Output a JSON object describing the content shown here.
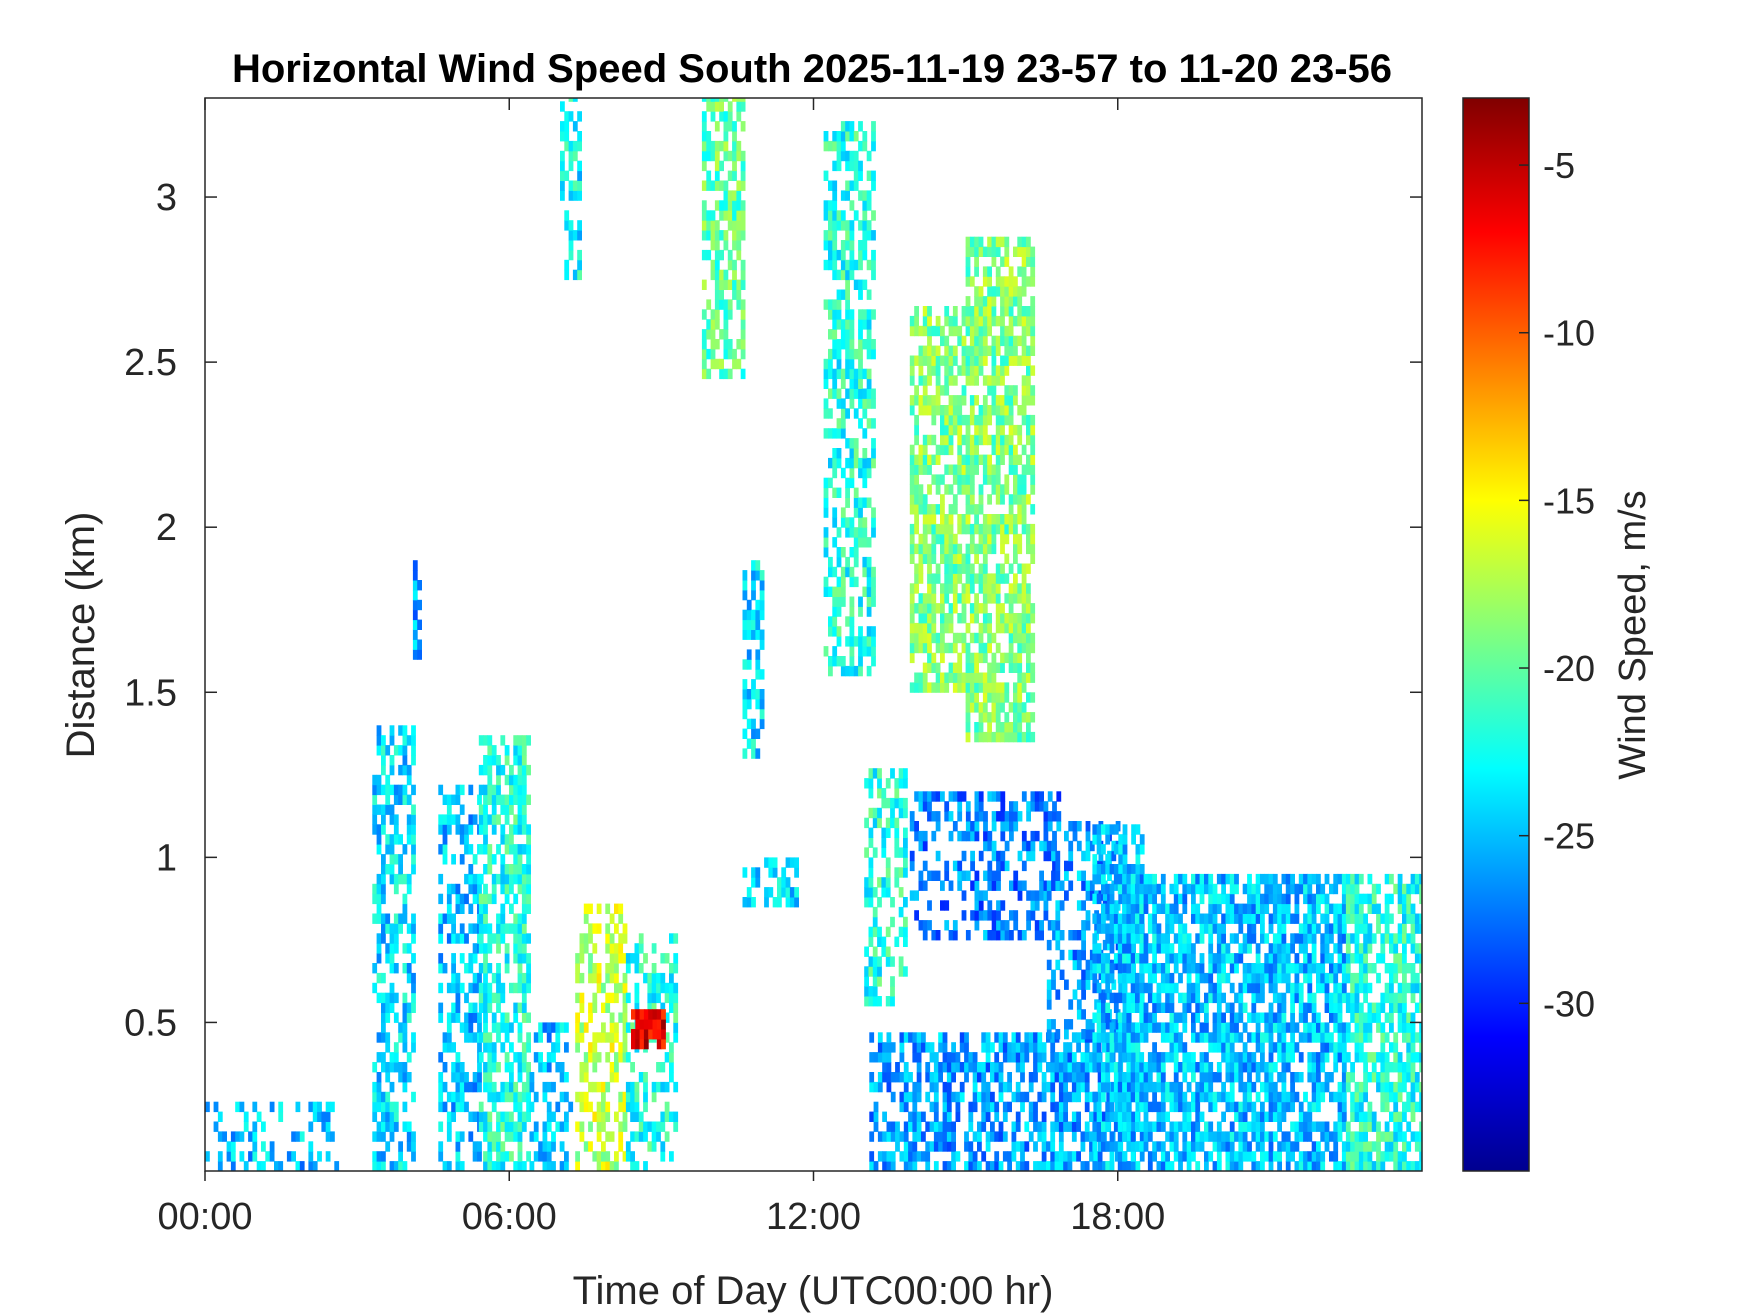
{
  "chart_data": {
    "type": "heatmap",
    "title": "Horizontal Wind Speed South 2025-11-19 23-57 to 11-20 23-56",
    "xlabel": "Time of Day (UTC00:00 hr)",
    "ylabel": "Distance (km)",
    "colorbar_label": "Wind Speed, m/s",
    "x_unit": "hours",
    "xlim": [
      0,
      24
    ],
    "ylim": [
      0.05,
      3.3
    ],
    "clim": [
      -35,
      -3
    ],
    "x_ticks": [
      0,
      6,
      12,
      18
    ],
    "x_tick_labels": [
      "00:00",
      "06:00",
      "12:00",
      "18:00"
    ],
    "y_ticks": [
      0.5,
      1,
      1.5,
      2,
      2.5,
      3
    ],
    "y_tick_labels": [
      "0.5",
      "1",
      "1.5",
      "2",
      "2.5",
      "3"
    ],
    "colorbar_ticks": [
      -30,
      -25,
      -20,
      -15,
      -10,
      -5
    ],
    "colorbar_tick_labels": [
      "-30",
      "-25",
      "-20",
      "-15",
      "-10",
      "-5"
    ],
    "colormap": "jet",
    "grid": false,
    "clusters": [
      {
        "t": [
          0.0,
          2.6
        ],
        "d": [
          0.05,
          0.25
        ],
        "v": -25,
        "density": 0.35
      },
      {
        "t": [
          3.3,
          4.1
        ],
        "d": [
          0.05,
          1.4
        ],
        "v": -24,
        "density": 0.55
      },
      {
        "t": [
          4.1,
          4.25
        ],
        "d": [
          1.6,
          1.9
        ],
        "v": -26,
        "density": 0.8
      },
      {
        "t": [
          4.6,
          5.4
        ],
        "d": [
          0.05,
          1.2
        ],
        "v": -25,
        "density": 0.5
      },
      {
        "t": [
          5.4,
          6.4
        ],
        "d": [
          0.05,
          1.35
        ],
        "v": -22,
        "density": 0.65
      },
      {
        "t": [
          6.4,
          7.2
        ],
        "d": [
          0.05,
          0.5
        ],
        "v": -25,
        "density": 0.4
      },
      {
        "t": [
          7.0,
          7.4
        ],
        "d": [
          2.75,
          3.3
        ],
        "v": -23,
        "density": 0.5
      },
      {
        "t": [
          7.3,
          8.3
        ],
        "d": [
          0.05,
          0.85
        ],
        "v": -17,
        "density": 0.55
      },
      {
        "t": [
          8.3,
          9.3
        ],
        "d": [
          0.05,
          0.75
        ],
        "v": -22,
        "density": 0.5
      },
      {
        "t": [
          8.4,
          9.0
        ],
        "d": [
          0.42,
          0.52
        ],
        "v": -6,
        "density": 0.9
      },
      {
        "t": [
          9.8,
          10.6
        ],
        "d": [
          2.45,
          3.3
        ],
        "v": -20,
        "density": 0.65
      },
      {
        "t": [
          10.6,
          11.0
        ],
        "d": [
          1.3,
          1.9
        ],
        "v": -24,
        "density": 0.6
      },
      {
        "t": [
          10.6,
          11.7
        ],
        "d": [
          0.85,
          1.0
        ],
        "v": -24,
        "density": 0.5
      },
      {
        "t": [
          12.2,
          13.2
        ],
        "d": [
          1.55,
          3.2
        ],
        "v": -22,
        "density": 0.55
      },
      {
        "t": [
          13.0,
          13.8
        ],
        "d": [
          0.55,
          1.25
        ],
        "v": -22,
        "density": 0.45
      },
      {
        "t": [
          13.1,
          18.0
        ],
        "d": [
          0.05,
          0.45
        ],
        "v": -26,
        "density": 0.6
      },
      {
        "t": [
          13.9,
          15.0
        ],
        "d": [
          1.5,
          2.65
        ],
        "v": -19,
        "density": 0.7
      },
      {
        "t": [
          15.0,
          16.3
        ],
        "d": [
          1.35,
          2.85
        ],
        "v": -19,
        "density": 0.7
      },
      {
        "t": [
          13.9,
          16.8
        ],
        "d": [
          0.75,
          1.2
        ],
        "v": -27,
        "density": 0.45
      },
      {
        "t": [
          16.6,
          18.0
        ],
        "d": [
          0.45,
          1.1
        ],
        "v": -26,
        "density": 0.45
      },
      {
        "t": [
          17.5,
          18.5
        ],
        "d": [
          0.05,
          1.1
        ],
        "v": -25,
        "density": 0.65
      },
      {
        "t": [
          18.0,
          22.5
        ],
        "d": [
          0.05,
          0.95
        ],
        "v": -25,
        "density": 0.7
      },
      {
        "t": [
          22.5,
          24.0
        ],
        "d": [
          0.05,
          0.95
        ],
        "v": -22,
        "density": 0.7
      }
    ]
  }
}
